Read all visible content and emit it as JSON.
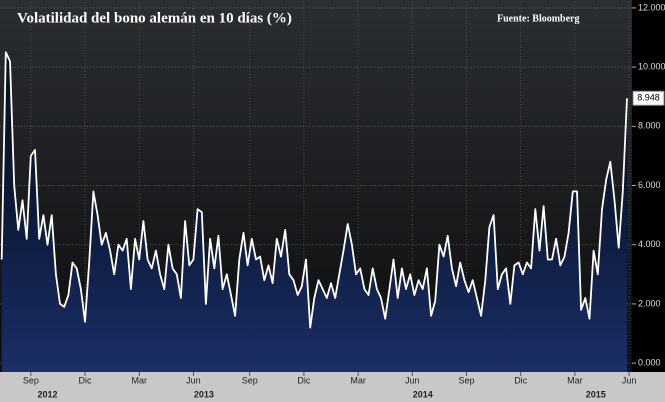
{
  "chart_data": {
    "type": "line",
    "title": "Volatilidad del bono alemán en 10 días (%)",
    "source": "Fuente: Bloomberg",
    "x": [
      0,
      1,
      2,
      3,
      4,
      5,
      6,
      7,
      8,
      9,
      10,
      11,
      12,
      13,
      14,
      15,
      16,
      17,
      18,
      19,
      20,
      21,
      22,
      23,
      24,
      25,
      26,
      27,
      28,
      29,
      30,
      31,
      32,
      33,
      34,
      35,
      36,
      37,
      38,
      39,
      40,
      41,
      42,
      43,
      44,
      45,
      46,
      47,
      48,
      49,
      50,
      51,
      52,
      53,
      54,
      55,
      56,
      57,
      58,
      59,
      60,
      61,
      62,
      63,
      64,
      65,
      66,
      67,
      68,
      69,
      70,
      71,
      72,
      73,
      74,
      75,
      76,
      77,
      78,
      79,
      80,
      81,
      82,
      83,
      84,
      85,
      86,
      87,
      88,
      89,
      90,
      91,
      92,
      93,
      94,
      95,
      96,
      97,
      98,
      99,
      100,
      101,
      102,
      103,
      104,
      105,
      106,
      107,
      108,
      109,
      110,
      111,
      112,
      113,
      114,
      115,
      116,
      117,
      118,
      119,
      120,
      121,
      122,
      123,
      124,
      125,
      126,
      127,
      128,
      129,
      130,
      131,
      132,
      133,
      134,
      135,
      136,
      137,
      138,
      139,
      140,
      141,
      142,
      143,
      144,
      145,
      146,
      147,
      148,
      149,
      150
    ],
    "series": [
      {
        "color": "#ffffff",
        "values": [
          3.5,
          10.5,
          10.2,
          6,
          4.5,
          5.5,
          4.2,
          7,
          7.2,
          4.2,
          5,
          4,
          5,
          3,
          2,
          1.9,
          2.3,
          3.4,
          3.2,
          2.5,
          1.4,
          3.4,
          5.8,
          5,
          4,
          4.4,
          3.8,
          3,
          4,
          3.8,
          4.2,
          2.5,
          4.2,
          3.5,
          4.8,
          3.5,
          3.2,
          3.8,
          3,
          2.5,
          4,
          3.2,
          3,
          2.2,
          4.8,
          3.3,
          3.5,
          5.2,
          5.1,
          2,
          4.2,
          3.2,
          4.3,
          2.5,
          3,
          2.3,
          1.6,
          3.5,
          4.4,
          3.3,
          4.2,
          3.5,
          3.6,
          2.8,
          3.3,
          2.7,
          4.2,
          3.6,
          4.5,
          3,
          2.8,
          2.3,
          2.6,
          3.5,
          1.2,
          2.2,
          2.8,
          2.5,
          2.2,
          2.7,
          2.2,
          3,
          3.8,
          4.7,
          4,
          3,
          3.2,
          2.5,
          2.3,
          3.2,
          2.5,
          2.2,
          1.5,
          2.5,
          3.5,
          2.2,
          3.2,
          2.5,
          3,
          2.3,
          2.8,
          2.5,
          3.2,
          1.6,
          2.1,
          4,
          3.6,
          4.3,
          3.2,
          2.6,
          3.4,
          2.8,
          2.4,
          2.8,
          2.2,
          1.6,
          2.8,
          4.6,
          5,
          2.5,
          3,
          3.2,
          2,
          3.3,
          3.4,
          3,
          3.4,
          3.2,
          5.2,
          3.8,
          5.3,
          3.5,
          3.5,
          4.2,
          3.3,
          3.6,
          4.4,
          5.8,
          5.8,
          1.8,
          2.2,
          1.5,
          3.8,
          3,
          5.2,
          6.2,
          6.8,
          5.5,
          3.9,
          5.8,
          8.948
        ]
      }
    ],
    "xlim": [
      -0.4,
      151.2
    ],
    "xticks": [
      {
        "value": 7,
        "label": "Sep"
      },
      {
        "value": 20,
        "label": "Dic"
      },
      {
        "value": 33,
        "label": "Mar"
      },
      {
        "value": 46,
        "label": "Jun"
      },
      {
        "value": 59.5,
        "label": "Sep"
      },
      {
        "value": 72.5,
        "label": "Dic"
      },
      {
        "value": 85.5,
        "label": "Mar"
      },
      {
        "value": 98.5,
        "label": "Jun"
      },
      {
        "value": 111.5,
        "label": "Sep"
      },
      {
        "value": 124.5,
        "label": "Dic"
      },
      {
        "value": 137.5,
        "label": "Mar"
      },
      {
        "value": 150.5,
        "label": "Jun"
      }
    ],
    "year_ticks": [
      {
        "value": 11,
        "label": "2012"
      },
      {
        "value": 48.5,
        "label": "2013"
      },
      {
        "value": 101,
        "label": "2014"
      },
      {
        "value": 142.5,
        "label": "2015"
      }
    ],
    "ylim": [
      -0.3,
      12.2
    ],
    "yticks": [
      {
        "value": 0,
        "label": "0.000"
      },
      {
        "value": 2,
        "label": "2.000"
      },
      {
        "value": 4,
        "label": "4.000"
      },
      {
        "value": 6,
        "label": "6.000"
      },
      {
        "value": 8,
        "label": "8.000"
      },
      {
        "value": 10,
        "label": "10.000"
      },
      {
        "value": 12,
        "label": "12.000"
      }
    ],
    "grid": true
  }
}
